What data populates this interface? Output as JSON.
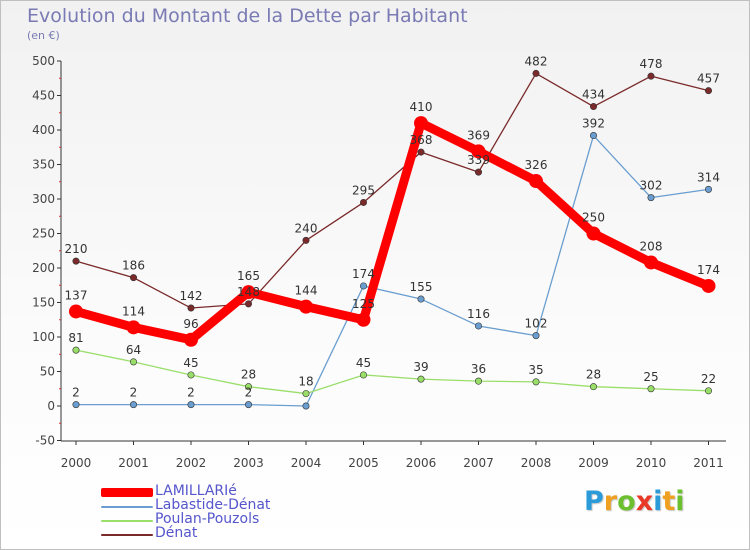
{
  "header": {
    "title": "Evolution du Montant de la Dette par Habitant",
    "unit": "(en €)"
  },
  "logo": {
    "text": "Proxiti",
    "letters": [
      {
        "ch": "P",
        "color": "#2a9ad8"
      },
      {
        "ch": "r",
        "color": "#f0a020"
      },
      {
        "ch": "o",
        "color": "#6cc030"
      },
      {
        "ch": "x",
        "color": "#e83828"
      },
      {
        "ch": "i",
        "color": "#2a9ad8"
      },
      {
        "ch": "t",
        "color": "#f0a020"
      },
      {
        "ch": "i",
        "color": "#6cc030"
      }
    ]
  },
  "chart_data": {
    "type": "line",
    "title": "Evolution du Montant de la Dette par Habitant",
    "ylabel": "(en €)",
    "x": [
      "2000",
      "2001",
      "2002",
      "2003",
      "2004",
      "2005",
      "2006",
      "2007",
      "2008",
      "2009",
      "2010",
      "2011"
    ],
    "ylim": [
      -50,
      500
    ],
    "yticks": [
      -50,
      0,
      50,
      100,
      150,
      200,
      250,
      300,
      350,
      400,
      450,
      500
    ],
    "grid": false,
    "legend_position": "bottom-left",
    "series": [
      {
        "name": "LAMILLARIé",
        "color": "#ff0000",
        "emphasis": true,
        "values": [
          137,
          114,
          96,
          165,
          144,
          125,
          410,
          369,
          326,
          250,
          208,
          174
        ]
      },
      {
        "name": "Labastide-Dénat",
        "color": "#6a9ed0",
        "emphasis": false,
        "values": [
          2,
          2,
          2,
          2,
          0,
          174,
          155,
          116,
          102,
          392,
          302,
          314
        ]
      },
      {
        "name": "Poulan-Pouzols",
        "color": "#9ade6a",
        "emphasis": false,
        "values": [
          81,
          64,
          45,
          28,
          18,
          45,
          39,
          36,
          35,
          28,
          25,
          22
        ]
      },
      {
        "name": "Dénat",
        "color": "#7a2a2a",
        "emphasis": false,
        "values": [
          210,
          186,
          142,
          148,
          240,
          295,
          368,
          339,
          482,
          434,
          478,
          457
        ]
      }
    ],
    "data_labels": [
      {
        "series": 3,
        "labels": [
          "210",
          "186",
          "142",
          "148",
          "240",
          "295",
          "368",
          "339",
          "482",
          "434",
          "478",
          "457"
        ]
      },
      {
        "series": 0,
        "labels": [
          "137",
          "114",
          "96",
          "165",
          "144",
          "125",
          "410",
          "369",
          "326",
          "250",
          "208",
          "174"
        ]
      },
      {
        "series": 1,
        "labels": [
          "2",
          "2",
          "2",
          "2",
          "",
          "174",
          "155",
          "116",
          "102",
          "392",
          "302",
          "314"
        ]
      },
      {
        "series": 2,
        "labels": [
          "81",
          "64",
          "45",
          "28",
          "18",
          "45",
          "39",
          "36",
          "35",
          "28",
          "25",
          "22"
        ]
      }
    ]
  }
}
